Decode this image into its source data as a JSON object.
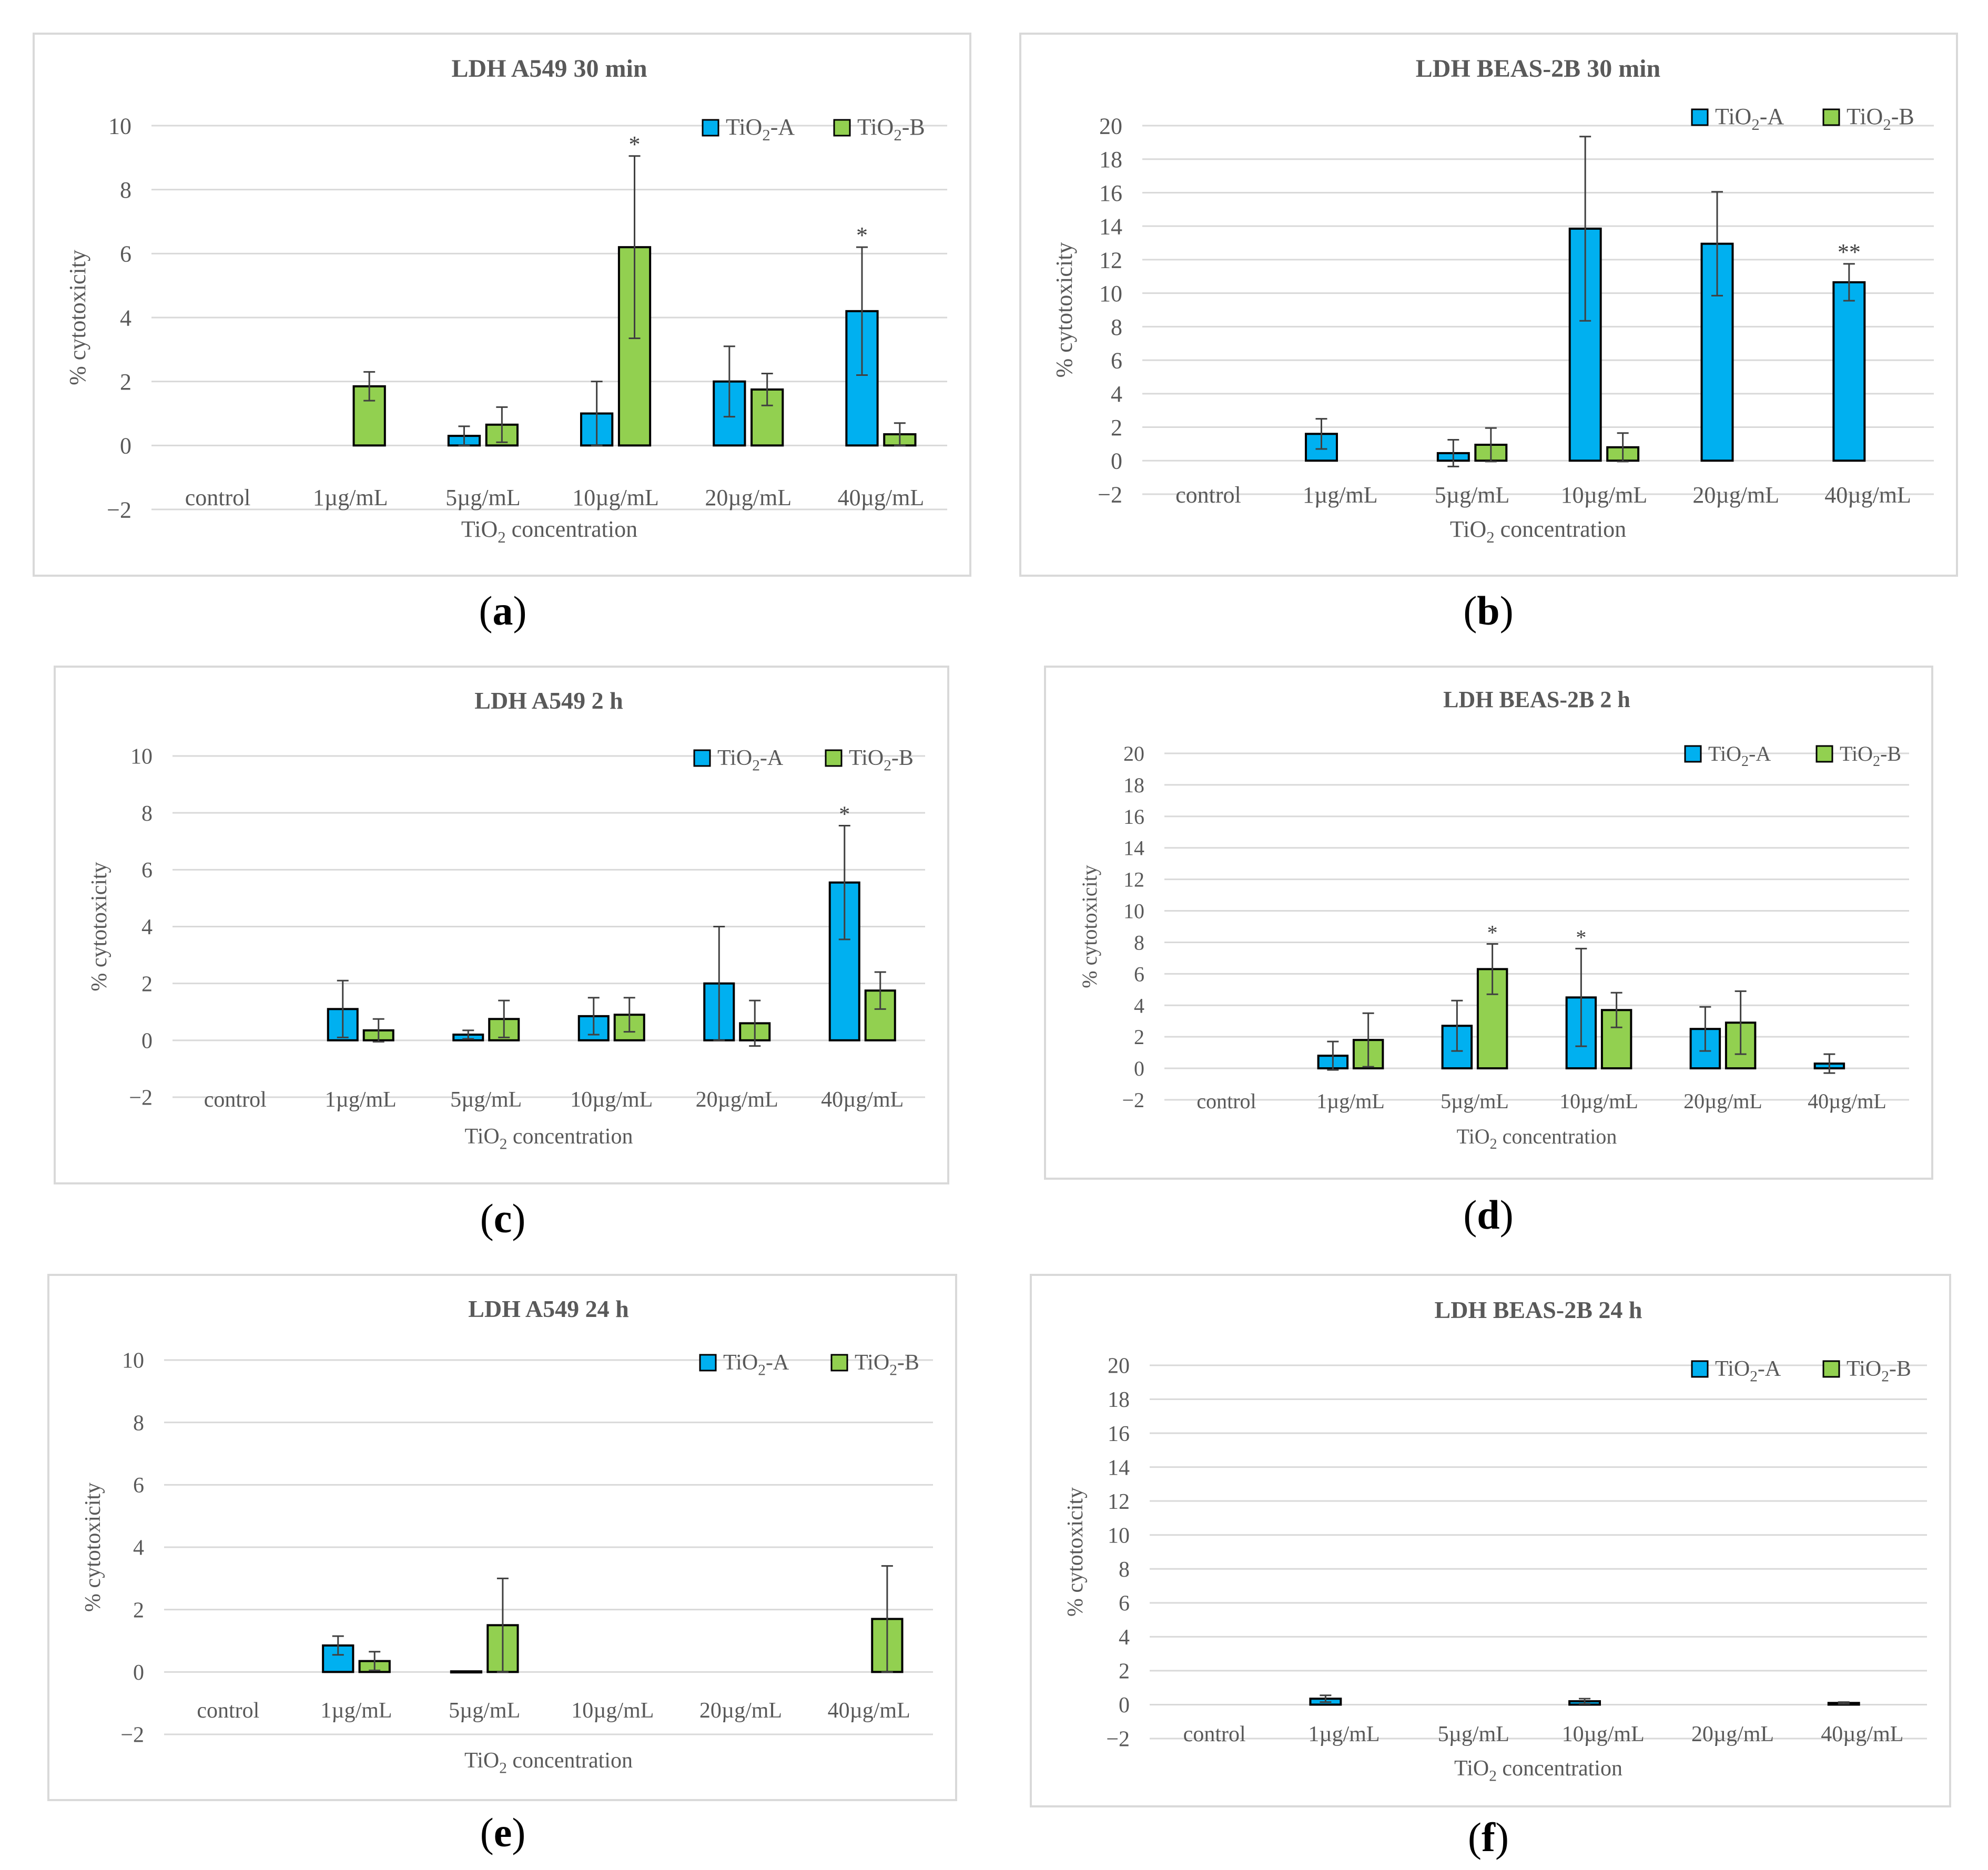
{
  "colors": {
    "series_a": "#00b0f0",
    "series_b": "#92d050",
    "grid": "#d9d9d9",
    "text": "#595959",
    "error": "#404040"
  },
  "captions": [
    "a",
    "b",
    "c",
    "d",
    "e",
    "f"
  ],
  "chart_data": [
    {
      "type": "bar",
      "panel": "a",
      "title": "LDH A549 30 min",
      "xlabel": "TiO2 concentration",
      "xlabel_main": "TiO",
      "xlabel_sub": "2",
      "xlabel_rest": " concentration",
      "ylabel": "% cytotoxicity",
      "ylim": [
        -2,
        10
      ],
      "yticks": [
        -2,
        0,
        2,
        4,
        6,
        8,
        10
      ],
      "categories": [
        "control",
        "1µg/mL",
        "5µg/mL",
        "10µg/mL",
        "20µg/mL",
        "40µg/mL"
      ],
      "legend_position": "top-right",
      "series": [
        {
          "name": "TiO2-A",
          "label_main": "TiO",
          "label_sub": "2",
          "label_rest": "-A",
          "values": [
            0,
            0,
            0.3,
            1.0,
            2.0,
            4.2
          ],
          "errors": [
            0,
            0,
            0.3,
            1.0,
            1.1,
            2.0
          ],
          "sig": [
            "",
            "",
            "",
            "",
            "",
            "*"
          ]
        },
        {
          "name": "TiO2-B",
          "label_main": "TiO",
          "label_sub": "2",
          "label_rest": "-B",
          "values": [
            0,
            1.85,
            0.65,
            6.2,
            1.75,
            0.35
          ],
          "errors": [
            0,
            0.45,
            0.55,
            2.85,
            0.5,
            0.35
          ],
          "sig": [
            "",
            "",
            "",
            "*",
            "",
            ""
          ]
        }
      ]
    },
    {
      "type": "bar",
      "panel": "b",
      "title": "LDH BEAS-2B 30 min",
      "xlabel": "TiO2 concentration",
      "xlabel_main": "TiO",
      "xlabel_sub": "2",
      "xlabel_rest": " concentration",
      "ylabel": "% cytotoxicity",
      "ylim": [
        -2,
        20
      ],
      "yticks": [
        -2,
        0,
        2,
        4,
        6,
        8,
        10,
        12,
        14,
        16,
        18,
        20
      ],
      "categories": [
        "control",
        "1µg/mL",
        "5µg/mL",
        "10µg/mL",
        "20µg/mL",
        "40µg/mL"
      ],
      "legend_position": "top-right",
      "series": [
        {
          "name": "TiO2-A",
          "label_main": "TiO",
          "label_sub": "2",
          "label_rest": "-A",
          "values": [
            0,
            1.6,
            0.45,
            13.85,
            12.95,
            10.65
          ],
          "errors": [
            0,
            0.9,
            0.8,
            5.5,
            3.1,
            1.1
          ],
          "sig": [
            "",
            "",
            "",
            "",
            "",
            "**"
          ]
        },
        {
          "name": "TiO2-B",
          "label_main": "TiO",
          "label_sub": "2",
          "label_rest": "-B",
          "values": [
            0,
            0,
            0.95,
            0.8,
            0,
            0
          ],
          "errors": [
            0,
            0,
            1.0,
            0.85,
            0,
            0
          ],
          "sig": [
            "",
            "",
            "",
            "",
            "",
            ""
          ]
        }
      ]
    },
    {
      "type": "bar",
      "panel": "c",
      "title": "LDH A549 2 h",
      "xlabel": "TiO2 concentration",
      "xlabel_main": "TiO",
      "xlabel_sub": "2",
      "xlabel_rest": " concentration",
      "ylabel": "% cytotoxicity",
      "ylim": [
        -2,
        10
      ],
      "yticks": [
        -2,
        0,
        2,
        4,
        6,
        8,
        10
      ],
      "categories": [
        "control",
        "1µg/mL",
        "5µg/mL",
        "10µg/mL",
        "20µg/mL",
        "40µg/mL"
      ],
      "legend_position": "top-right",
      "series": [
        {
          "name": "TiO2-A",
          "label_main": "TiO",
          "label_sub": "2",
          "label_rest": "-A",
          "values": [
            0,
            1.1,
            0.2,
            0.85,
            2.0,
            5.55
          ],
          "errors": [
            0,
            1.0,
            0.15,
            0.65,
            2.0,
            2.0
          ],
          "sig": [
            "",
            "",
            "",
            "",
            "",
            "*"
          ]
        },
        {
          "name": "TiO2-B",
          "label_main": "TiO",
          "label_sub": "2",
          "label_rest": "-B",
          "values": [
            0,
            0.35,
            0.75,
            0.9,
            0.6,
            1.75
          ],
          "errors": [
            0,
            0.4,
            0.65,
            0.6,
            0.8,
            0.65
          ],
          "sig": [
            "",
            "",
            "",
            "",
            "",
            ""
          ]
        }
      ]
    },
    {
      "type": "bar",
      "panel": "d",
      "title": "LDH BEAS-2B 2 h",
      "xlabel": "TiO2 concentration",
      "xlabel_main": "TiO",
      "xlabel_sub": "2",
      "xlabel_rest": " concentration",
      "ylabel": "% cytotoxicity",
      "ylim": [
        -2,
        20
      ],
      "yticks": [
        -2,
        0,
        2,
        4,
        6,
        8,
        10,
        12,
        14,
        16,
        18,
        20
      ],
      "categories": [
        "control",
        "1µg/mL",
        "5µg/mL",
        "10µg/mL",
        "20µg/mL",
        "40µg/mL"
      ],
      "legend_position": "top-right",
      "series": [
        {
          "name": "TiO2-A",
          "label_main": "TiO",
          "label_sub": "2",
          "label_rest": "-A",
          "values": [
            0,
            0.8,
            2.7,
            4.5,
            2.5,
            0.3
          ],
          "errors": [
            0,
            0.9,
            1.6,
            3.1,
            1.4,
            0.6
          ],
          "sig": [
            "",
            "",
            "",
            "*",
            "",
            ""
          ]
        },
        {
          "name": "TiO2-B",
          "label_main": "TiO",
          "label_sub": "2",
          "label_rest": "-B",
          "values": [
            0,
            1.8,
            6.3,
            3.7,
            2.9,
            0
          ],
          "errors": [
            0,
            1.7,
            1.6,
            1.1,
            2.0,
            0
          ],
          "sig": [
            "",
            "",
            "*",
            "",
            "",
            ""
          ]
        }
      ]
    },
    {
      "type": "bar",
      "panel": "e",
      "title": "LDH A549 24 h",
      "xlabel": "TiO2 concentration",
      "xlabel_main": "TiO",
      "xlabel_sub": "2",
      "xlabel_rest": " concentration",
      "ylabel": "% cytotoxicity",
      "ylim": [
        -2,
        10
      ],
      "yticks": [
        -2,
        0,
        2,
        4,
        6,
        8,
        10
      ],
      "categories": [
        "control",
        "1µg/mL",
        "5µg/mL",
        "10µg/mL",
        "20µg/mL",
        "40µg/mL"
      ],
      "legend_position": "top-right",
      "series": [
        {
          "name": "TiO2-A",
          "label_main": "TiO",
          "label_sub": "2",
          "label_rest": "-A",
          "values": [
            0,
            0.85,
            0.02,
            0,
            0,
            0
          ],
          "errors": [
            0,
            0.3,
            0,
            0,
            0,
            0
          ],
          "sig": [
            "",
            "",
            "",
            "",
            "",
            ""
          ]
        },
        {
          "name": "TiO2-B",
          "label_main": "TiO",
          "label_sub": "2",
          "label_rest": "-B",
          "values": [
            0,
            0.35,
            1.5,
            0,
            0,
            1.7
          ],
          "errors": [
            0,
            0.3,
            1.5,
            0,
            0,
            1.7
          ],
          "sig": [
            "",
            "",
            "",
            "",
            "",
            ""
          ]
        }
      ]
    },
    {
      "type": "bar",
      "panel": "f",
      "title": "LDH BEAS-2B 24 h",
      "xlabel": "TiO2 concentration",
      "xlabel_main": "TiO",
      "xlabel_sub": "2",
      "xlabel_rest": " concentration",
      "ylabel": "% cytotoxicity",
      "ylim": [
        -2,
        20
      ],
      "yticks": [
        -2,
        0,
        2,
        4,
        6,
        8,
        10,
        12,
        14,
        16,
        18,
        20
      ],
      "categories": [
        "control",
        "1µg/mL",
        "5µg/mL",
        "10µg/mL",
        "20µg/mL",
        "40µg/mL"
      ],
      "legend_position": "top-right",
      "series": [
        {
          "name": "TiO2-A",
          "label_main": "TiO",
          "label_sub": "2",
          "label_rest": "-A",
          "values": [
            0,
            0.35,
            0,
            0.2,
            0,
            0.1
          ],
          "errors": [
            0,
            0.2,
            0,
            0.15,
            0,
            0.05
          ],
          "sig": [
            "",
            "",
            "",
            "",
            "",
            ""
          ]
        },
        {
          "name": "TiO2-B",
          "label_main": "TiO",
          "label_sub": "2",
          "label_rest": "-B",
          "values": [
            0,
            0,
            0,
            0,
            0,
            0
          ],
          "errors": [
            0,
            0,
            0,
            0,
            0,
            0
          ],
          "sig": [
            "",
            "",
            "",
            "",
            "",
            ""
          ]
        }
      ]
    }
  ]
}
